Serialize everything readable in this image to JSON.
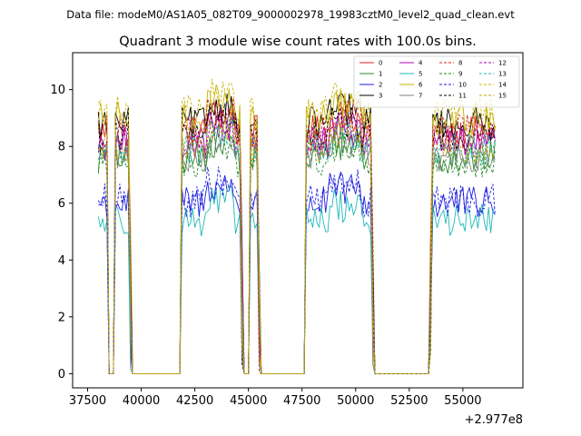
{
  "chart_data": {
    "type": "line",
    "suptitle": "Data file: modeM0/AS1A05_082T09_9000002978_19983cztM0_level2_quad_clean.evt",
    "title": "Quadrant 3 module wise count rates with 100.0s bins.",
    "xlabel": "",
    "ylabel": "",
    "x_offset_label": "+2.977e8",
    "xlim": [
      36800,
      57800
    ],
    "ylim": [
      -0.5,
      11.3
    ],
    "xticks": [
      37500,
      40000,
      42500,
      45000,
      47500,
      50000,
      52500,
      55000
    ],
    "xtick_labels": [
      "37500",
      "40000",
      "42500",
      "45000",
      "47500",
      "50000",
      "52500",
      "55000"
    ],
    "yticks": [
      0,
      2,
      4,
      6,
      8,
      10
    ],
    "ytick_labels": [
      "0",
      "2",
      "4",
      "6",
      "8",
      "10"
    ],
    "segments": [
      {
        "x0": 38000,
        "x1": 38400,
        "on": true
      },
      {
        "x0": 38500,
        "x1": 38700,
        "on": false
      },
      {
        "x0": 38800,
        "x1": 39400,
        "on": true
      },
      {
        "x0": 39600,
        "x1": 41800,
        "on": false
      },
      {
        "x0": 41900,
        "x1": 44600,
        "on": true
      },
      {
        "x0": 44800,
        "x1": 45000,
        "on": false
      },
      {
        "x0": 45100,
        "x1": 45400,
        "on": true
      },
      {
        "x0": 45600,
        "x1": 47600,
        "on": false
      },
      {
        "x0": 47700,
        "x1": 50700,
        "on": true
      },
      {
        "x0": 50900,
        "x1": 53400,
        "on": false
      },
      {
        "x0": 53600,
        "x1": 56500,
        "on": true
      }
    ],
    "series": [
      {
        "name": "0",
        "color": "#d62020",
        "dash": "solid",
        "level": 8.5
      },
      {
        "name": "1",
        "color": "#2a8a2a",
        "dash": "solid",
        "level": 7.6
      },
      {
        "name": "2",
        "color": "#1f1fe0",
        "dash": "solid",
        "level": 6.0
      },
      {
        "name": "3",
        "color": "#000000",
        "dash": "solid",
        "level": 8.8
      },
      {
        "name": "4",
        "color": "#b000b0",
        "dash": "solid",
        "level": 8.1
      },
      {
        "name": "5",
        "color": "#20b8b8",
        "dash": "solid",
        "level": 5.4
      },
      {
        "name": "6",
        "color": "#c8b400",
        "dash": "solid",
        "level": 9.0
      },
      {
        "name": "7",
        "color": "#808080",
        "dash": "solid",
        "level": 7.7
      },
      {
        "name": "8",
        "color": "#d62020",
        "dash": "dashed",
        "level": 8.6
      },
      {
        "name": "9",
        "color": "#2a8a2a",
        "dash": "dashed",
        "level": 7.5
      },
      {
        "name": "10",
        "color": "#1f1fe0",
        "dash": "dashed",
        "level": 6.1
      },
      {
        "name": "11",
        "color": "#000000",
        "dash": "dashed",
        "level": 8.4
      },
      {
        "name": "12",
        "color": "#b000b0",
        "dash": "dashed",
        "level": 8.2
      },
      {
        "name": "13",
        "color": "#20b8b8",
        "dash": "dashed",
        "level": 7.9
      },
      {
        "name": "14",
        "color": "#c8b400",
        "dash": "dashed",
        "level": 9.2
      },
      {
        "name": "15",
        "color": "#c8a000",
        "dash": "dashed",
        "level": 8.0
      }
    ],
    "legend_position": "top-right",
    "grid": false
  }
}
